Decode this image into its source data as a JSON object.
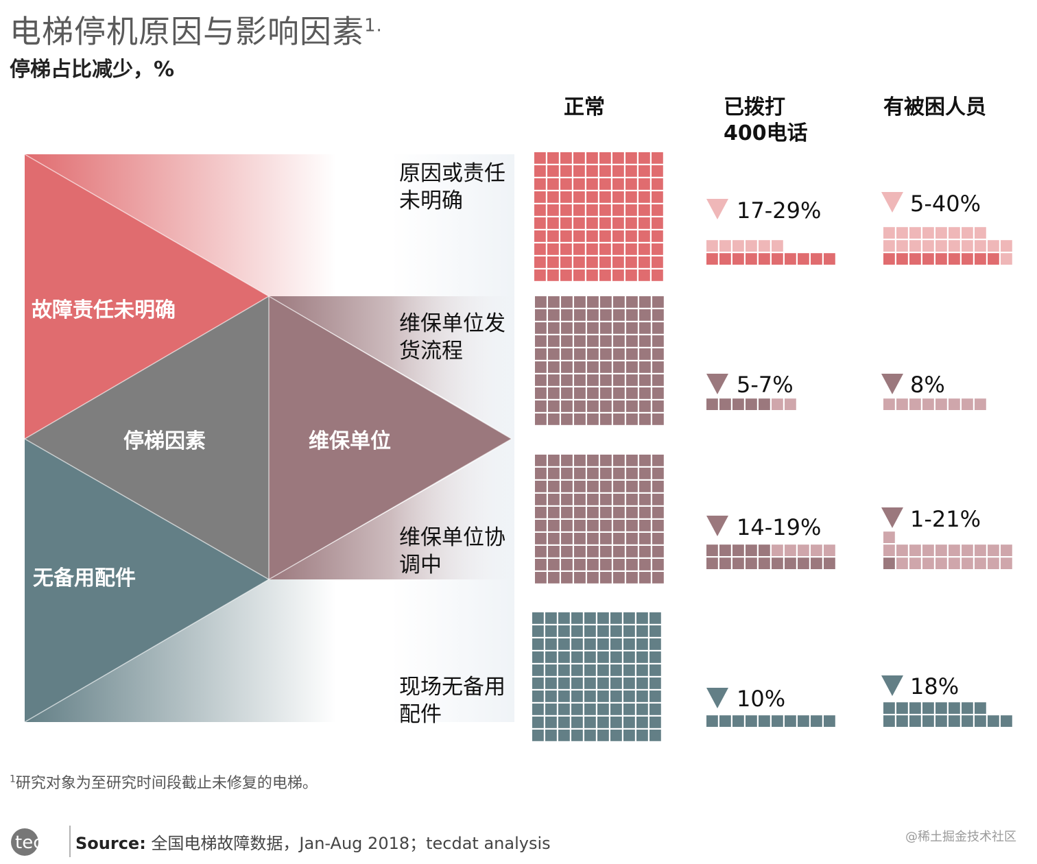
{
  "title": "电梯停机原因与影响因素",
  "title_sup": "1.",
  "subtitle": "停梯占比减少，%",
  "chart_data": {
    "type": "waffle",
    "title": "电梯停机原因与影响因素",
    "subtitle": "停梯占比减少，%",
    "columns": [
      "正常",
      "已拨打\n400电话",
      "有被困人员"
    ],
    "categories": [
      "故障责任未明确",
      "停梯因素",
      "维保单位",
      "无备用配件"
    ],
    "rows": [
      {
        "label": "原因或责任\n未明确",
        "color": "#e06c6f",
        "light": "#efb7b8",
        "cells": [
          100,
          16,
          28
        ],
        "reductions": [
          "",
          "17-29%",
          "5-40%"
        ]
      },
      {
        "label": "维保单位发\n货流程",
        "color": "#9b787d",
        "light": "#cfa6ab",
        "cells": [
          100,
          7,
          8
        ],
        "reductions": [
          "",
          "5-7%",
          "8%"
        ]
      },
      {
        "label": "维保单位协\n调中",
        "color": "#9b787d",
        "light": "#cfa6ab",
        "cells": [
          100,
          20,
          21
        ],
        "reductions": [
          "",
          "14-19%",
          "1-21%"
        ]
      },
      {
        "label": "现场无备用\n配件",
        "color": "#637f86",
        "light": "#637f86",
        "cells": [
          100,
          10,
          18
        ],
        "reductions": [
          "",
          "10%",
          "18%"
        ]
      }
    ],
    "waffle_detail": [
      {
        "col1_dark": 10,
        "col1_light": 6,
        "col2_dark": 9,
        "col2_light": 19
      },
      {
        "col1_dark": 5,
        "col1_light": 2,
        "col2_dark": 0,
        "col2_light": 8
      },
      {
        "col1_dark": 15,
        "col1_light": 5,
        "col2_dark": 1,
        "col2_light": 20
      },
      {
        "col1_dark": 10,
        "col1_light": 0,
        "col2_dark": 18,
        "col2_light": 0
      }
    ]
  },
  "colors": {
    "red": "#e06c6f",
    "gray": "#7e7e7e",
    "mauve": "#9b787d",
    "teal": "#637f86"
  },
  "footnote_sup": "1",
  "footnote": "研究对象为至研究时间段截止未修复的电梯。",
  "logo_text": "tecdat",
  "source_label": "Source:",
  "source_text": " 全国电梯故障数据，Jan-Aug 2018；tecdat analysis",
  "watermark": "@稀土掘金技术社区"
}
